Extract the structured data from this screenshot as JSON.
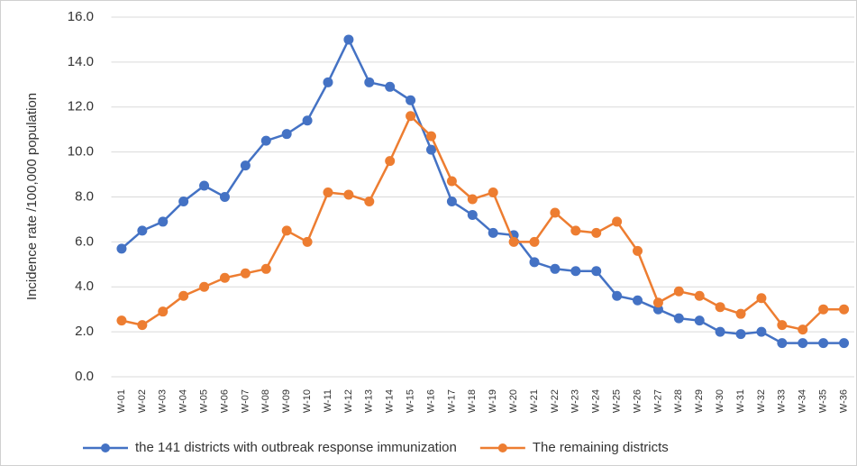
{
  "chart_data": {
    "type": "line",
    "y_label": "Incidence rate /100,000 population",
    "categories": [
      "W-01",
      "W-02",
      "W-03",
      "W-04",
      "W-05",
      "W-06",
      "W-07",
      "W-08",
      "W-09",
      "W-10",
      "W-11",
      "W-12",
      "W-13",
      "W-14",
      "W-15",
      "W-16",
      "W-17",
      "W-18",
      "W-19",
      "W-20",
      "W-21",
      "W-22",
      "W-23",
      "W-24",
      "W-25",
      "W-26",
      "W-27",
      "W-28",
      "W-29",
      "W-30",
      "W-31",
      "W-32",
      "W-33",
      "W-34",
      "W-35",
      "W-36"
    ],
    "series": [
      {
        "name": "the 141 districts with outbreak response immunization",
        "color": "#4472c4",
        "values": [
          5.7,
          6.5,
          6.9,
          7.8,
          8.5,
          8.0,
          9.4,
          10.5,
          10.8,
          11.4,
          13.1,
          15.0,
          13.1,
          12.9,
          12.3,
          10.1,
          7.8,
          7.2,
          6.4,
          6.3,
          5.1,
          4.8,
          4.7,
          4.7,
          3.6,
          3.4,
          3.0,
          2.6,
          2.5,
          2.0,
          1.9,
          2.0,
          1.5,
          1.5,
          1.5,
          1.5
        ]
      },
      {
        "name": "The remaining districts",
        "color": "#ed7d31",
        "values": [
          2.5,
          2.3,
          2.9,
          3.6,
          4.0,
          4.4,
          4.6,
          4.8,
          6.5,
          6.0,
          8.2,
          8.1,
          7.8,
          9.6,
          11.6,
          10.7,
          8.7,
          7.9,
          8.2,
          6.0,
          6.0,
          7.3,
          6.5,
          6.4,
          6.9,
          5.6,
          3.3,
          3.8,
          3.6,
          3.1,
          2.8,
          3.5,
          2.3,
          2.1,
          3.0,
          3.0
        ]
      }
    ],
    "ylim": [
      0,
      16
    ],
    "yticks": [
      {
        "value": 0,
        "label": "0.0"
      },
      {
        "value": 2,
        "label": "2.0"
      },
      {
        "value": 4,
        "label": "4.0"
      },
      {
        "value": 6,
        "label": "6.0"
      },
      {
        "value": 8,
        "label": "8.0"
      },
      {
        "value": 10,
        "label": "10.0"
      },
      {
        "value": 12,
        "label": "12.0"
      },
      {
        "value": 14,
        "label": "14.0"
      },
      {
        "value": 16,
        "label": "16.0"
      }
    ],
    "grid": true,
    "legend": "bottom"
  }
}
